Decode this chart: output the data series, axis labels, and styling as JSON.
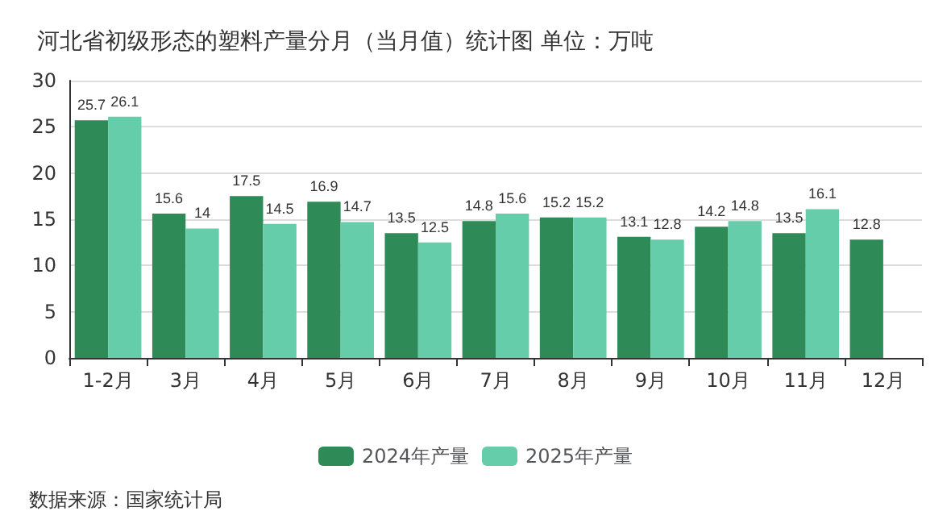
{
  "chart_data": {
    "type": "bar",
    "title": "河北省初级形态的塑料产量分月（当月值）统计图 单位：万吨",
    "categories": [
      "1-2月",
      "3月",
      "4月",
      "5月",
      "6月",
      "7月",
      "8月",
      "9月",
      "10月",
      "11月",
      "12月"
    ],
    "series": [
      {
        "name": "2024年产量",
        "color": "#2e8b57",
        "values": [
          25.7,
          15.6,
          17.5,
          16.9,
          13.5,
          14.8,
          15.2,
          13.1,
          14.2,
          13.5,
          12.8
        ]
      },
      {
        "name": "2025年产量",
        "color": "#66cdaa",
        "values": [
          26.1,
          14,
          14.5,
          14.7,
          12.5,
          15.6,
          15.2,
          12.8,
          14.8,
          16.1,
          null
        ]
      }
    ],
    "ylim": [
      0,
      30
    ],
    "yticks": [
      0,
      5,
      10,
      15,
      20,
      25,
      30
    ],
    "grid": "y",
    "legend": "bottom",
    "data_labels": true,
    "annotations": [
      "数据来源：国家统计局"
    ]
  }
}
